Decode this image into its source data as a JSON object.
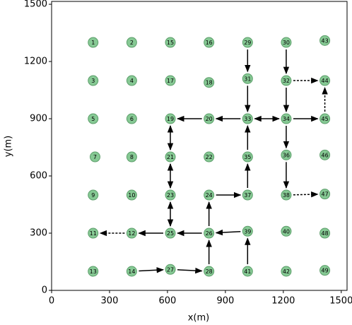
{
  "chart_data": {
    "type": "scatter",
    "xlabel": "x(m)",
    "ylabel": "y(m)",
    "xlim": [
      0,
      1530
    ],
    "ylim": [
      0,
      1515
    ],
    "xticks": [
      0,
      300,
      600,
      900,
      1200,
      1500
    ],
    "yticks": [
      0,
      300,
      600,
      900,
      1200,
      1500
    ],
    "color": "#86c994",
    "edge_color": "#5c9e6a",
    "arrow_color": "#000000",
    "labels": [
      "1",
      "2",
      "3",
      "4",
      "5",
      "6",
      "7",
      "8",
      "9",
      "10",
      "11",
      "12",
      "13",
      "14",
      "15",
      "16",
      "17",
      "18",
      "19",
      "20",
      "21",
      "22",
      "23",
      "24",
      "25",
      "26",
      "27",
      "28",
      "29",
      "30",
      "31",
      "32",
      "33",
      "34",
      "35",
      "36",
      "37",
      "38",
      "39",
      "40",
      "41",
      "42",
      "43",
      "44",
      "45",
      "46",
      "47",
      "48",
      "49"
    ],
    "x": [
      215,
      415,
      215,
      415,
      215,
      415,
      225,
      415,
      215,
      415,
      215,
      415,
      215,
      415,
      615,
      815,
      615,
      815,
      615,
      815,
      615,
      815,
      615,
      815,
      615,
      815,
      615,
      815,
      1015,
      1215,
      1015,
      1215,
      1015,
      1215,
      1015,
      1215,
      1015,
      1215,
      1015,
      1215,
      1015,
      1215,
      1415,
      1415,
      1415,
      1415,
      1415,
      1415,
      1415
    ],
    "values": [
      1300,
      1300,
      1100,
      1100,
      900,
      900,
      700,
      700,
      500,
      500,
      300,
      300,
      100,
      100,
      1300,
      1300,
      1100,
      1090,
      900,
      900,
      700,
      700,
      500,
      500,
      300,
      300,
      110,
      100,
      1300,
      1300,
      1110,
      1100,
      900,
      900,
      700,
      710,
      500,
      500,
      310,
      310,
      100,
      100,
      1310,
      1100,
      900,
      710,
      505,
      300,
      105
    ],
    "edges": [
      {
        "from": 28,
        "to": 30
      },
      {
        "from": 30,
        "to": 32
      },
      {
        "from": 29,
        "to": 31
      },
      {
        "from": 31,
        "to": 33
      },
      {
        "from": 31,
        "to": 43,
        "dashed": true
      },
      {
        "from": 44,
        "to": 43,
        "dashed": true
      },
      {
        "from": 32,
        "to": 19
      },
      {
        "from": 19,
        "to": 18
      },
      {
        "from": 32,
        "to": 33,
        "both": true
      },
      {
        "from": 33,
        "to": 44
      },
      {
        "from": 33,
        "to": 35
      },
      {
        "from": 35,
        "to": 37
      },
      {
        "from": 37,
        "to": 46,
        "dashed": true
      },
      {
        "from": 34,
        "to": 32
      },
      {
        "from": 36,
        "to": 34
      },
      {
        "from": 18,
        "to": 20,
        "both": true
      },
      {
        "from": 20,
        "to": 22,
        "both": true
      },
      {
        "from": 22,
        "to": 24,
        "both": true
      },
      {
        "from": 23,
        "to": 36
      },
      {
        "from": 25,
        "to": 23
      },
      {
        "from": 25,
        "to": 24
      },
      {
        "from": 24,
        "to": 11
      },
      {
        "from": 11,
        "to": 10,
        "dashed": true
      },
      {
        "from": 38,
        "to": 25
      },
      {
        "from": 40,
        "to": 38
      },
      {
        "from": 27,
        "to": 25
      },
      {
        "from": 13,
        "to": 26
      },
      {
        "from": 26,
        "to": 27
      }
    ]
  }
}
